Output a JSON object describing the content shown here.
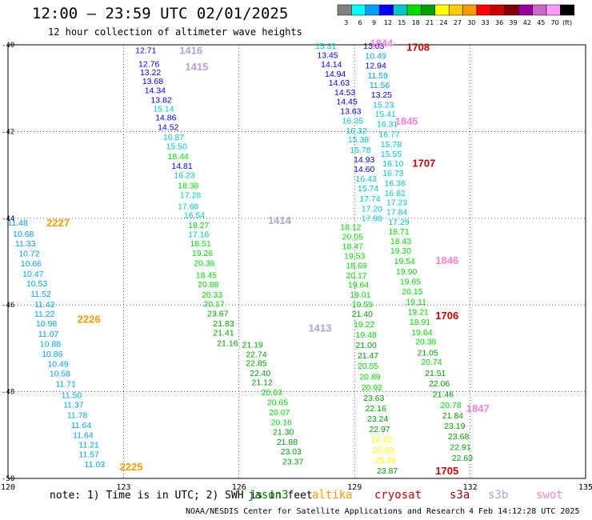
{
  "header": {
    "title": "12:00 — 23:59 UTC 02/01/2025",
    "subtitle": "12 hour collection of altimeter wave heights"
  },
  "colorbar": {
    "colors": [
      "#808080",
      "#00ffff",
      "#00a0ff",
      "#0000ff",
      "#00c8c8",
      "#00dd00",
      "#00a000",
      "#ffff00",
      "#ffcc00",
      "#ff9900",
      "#ff0000",
      "#cc0000",
      "#800000",
      "#990099",
      "#cc66cc",
      "#ff99ff",
      "#000000"
    ],
    "labels": [
      "3",
      "6",
      "9",
      "12",
      "15",
      "18",
      "21",
      "24",
      "27",
      "30",
      "33",
      "36",
      "39",
      "42",
      "45",
      "70",
      "(ft)"
    ]
  },
  "footer": {
    "note": "note: 1) Time is in UTC; 2) SWH is in feet",
    "credit": "NOAA/NESDIS Center for Satellite Applications and Research",
    "timestamp": "4 Feb 14:12:28 UTC 2025"
  },
  "legend": [
    {
      "name": "jason3",
      "color": "#008000"
    },
    {
      "name": "altika",
      "color": "#ff9900"
    },
    {
      "name": "cryosat",
      "color": "#cc0000"
    },
    {
      "name": "s3a",
      "color": "#990000"
    },
    {
      "name": "s3b",
      "color": "#b0a0e0"
    },
    {
      "name": "swot",
      "color": "#ff80d0"
    }
  ],
  "chart_data": {
    "type": "scatter",
    "title": "12:00 — 23:59 UTC 02/01/2025",
    "subtitle": "12 hour collection of altimeter wave heights",
    "xlabel": "",
    "ylabel": "",
    "xlim": [
      120,
      135
    ],
    "ylim": [
      -50,
      -40
    ],
    "x_ticks": [
      "120",
      "123",
      "126",
      "129",
      "132",
      "135"
    ],
    "y_ticks": [
      "-40",
      "-42",
      "-44",
      "-46",
      "-48",
      "-50"
    ],
    "grid": true,
    "color_scale": {
      "breaks": [
        3,
        6,
        9,
        12,
        15,
        18,
        21,
        24,
        27,
        30,
        33,
        36,
        39,
        42,
        45,
        70
      ],
      "colors": [
        "#808080",
        "#00ffff",
        "#00a0ff",
        "#0000ff",
        "#00c8c8",
        "#00dd00",
        "#00a000",
        "#ffff00",
        "#ffcc00",
        "#ff9900",
        "#ff0000",
        "#cc0000",
        "#800000",
        "#990099",
        "#cc66cc",
        "#ff99ff"
      ]
    },
    "annotations": [
      {
        "text": "1416",
        "x": 124.45,
        "y": -40.12,
        "color": "#b0a0e0"
      },
      {
        "text": "1415",
        "x": 124.6,
        "y": -40.5,
        "color": "#b0a0e0"
      },
      {
        "text": "1414",
        "x": 126.75,
        "y": -44.04,
        "color": "#b0a0e0"
      },
      {
        "text": "1413",
        "x": 127.8,
        "y": -46.52,
        "color": "#b0a0e0"
      },
      {
        "text": "2227",
        "x": 121.0,
        "y": -44.1,
        "color": "#ff9900"
      },
      {
        "text": "2226",
        "x": 121.8,
        "y": -46.32,
        "color": "#ff9900"
      },
      {
        "text": "2225",
        "x": 122.9,
        "y": -49.72,
        "color": "#ff9900"
      },
      {
        "text": "1844",
        "x": 129.4,
        "y": -39.95,
        "color": "#ff80d0"
      },
      {
        "text": "1708",
        "x": 130.35,
        "y": -40.05,
        "color": "#cc0000"
      },
      {
        "text": "1845",
        "x": 130.05,
        "y": -41.75,
        "color": "#ff80d0"
      },
      {
        "text": "1707",
        "x": 130.5,
        "y": -42.72,
        "color": "#cc0000"
      },
      {
        "text": "1846",
        "x": 131.1,
        "y": -44.96,
        "color": "#ff80d0"
      },
      {
        "text": "1706",
        "x": 131.1,
        "y": -46.24,
        "color": "#cc0000"
      },
      {
        "text": "1847",
        "x": 131.9,
        "y": -48.38,
        "color": "#ff80d0"
      },
      {
        "text": "1705",
        "x": 131.1,
        "y": -49.82,
        "color": "#cc0000"
      }
    ],
    "series": [
      {
        "name": "s3b",
        "points": [
          {
            "x": 123.58,
            "y": -40.12,
            "v": 12.71
          },
          {
            "x": 123.66,
            "y": -40.43,
            "v": 12.76
          },
          {
            "x": 123.7,
            "y": -40.63,
            "v": 13.22
          },
          {
            "x": 123.76,
            "y": -40.83,
            "v": 13.68
          },
          {
            "x": 123.82,
            "y": -41.04,
            "v": 14.34
          },
          {
            "x": 123.98,
            "y": -41.26,
            "v": 13.82
          },
          {
            "x": 124.04,
            "y": -41.47,
            "v": 15.14
          },
          {
            "x": 124.1,
            "y": -41.67,
            "v": 14.86
          },
          {
            "x": 124.16,
            "y": -41.89,
            "v": 14.52
          },
          {
            "x": 124.3,
            "y": -42.12,
            "v": 16.87
          },
          {
            "x": 124.38,
            "y": -42.33,
            "v": 15.5
          },
          {
            "x": 124.42,
            "y": -42.56,
            "v": 18.44
          },
          {
            "x": 124.52,
            "y": -42.79,
            "v": 14.81
          },
          {
            "x": 124.58,
            "y": -43.0,
            "v": 16.23
          },
          {
            "x": 124.68,
            "y": -43.24,
            "v": 18.38
          },
          {
            "x": 124.74,
            "y": -43.46,
            "v": 17.28
          },
          {
            "x": 124.68,
            "y": -43.72,
            "v": 17.68
          },
          {
            "x": 124.84,
            "y": -43.92,
            "v": 16.54
          },
          {
            "x": 124.95,
            "y": -44.15,
            "v": 18.27
          },
          {
            "x": 124.95,
            "y": -44.36,
            "v": 17.16
          },
          {
            "x": 125.0,
            "y": -44.58,
            "v": 18.51
          },
          {
            "x": 125.05,
            "y": -44.8,
            "v": 19.26
          },
          {
            "x": 125.1,
            "y": -45.03,
            "v": 20.36
          },
          {
            "x": 125.15,
            "y": -45.3,
            "v": 18.45
          },
          {
            "x": 125.2,
            "y": -45.52,
            "v": 20.88
          },
          {
            "x": 125.3,
            "y": -45.76,
            "v": 20.33
          },
          {
            "x": 125.35,
            "y": -45.97,
            "v": 20.17
          },
          {
            "x": 125.45,
            "y": -46.19,
            "v": 23.67
          },
          {
            "x": 125.6,
            "y": -46.42,
            "v": 21.83
          },
          {
            "x": 125.6,
            "y": -46.63,
            "v": 21.41
          },
          {
            "x": 125.7,
            "y": -46.87,
            "v": 21.16
          },
          {
            "x": 126.35,
            "y": -46.91,
            "v": 21.19
          },
          {
            "x": 126.45,
            "y": -47.13,
            "v": 22.74
          },
          {
            "x": 126.45,
            "y": -47.33,
            "v": 22.85
          },
          {
            "x": 126.55,
            "y": -47.56,
            "v": 22.4
          },
          {
            "x": 126.6,
            "y": -47.78,
            "v": 21.12
          },
          {
            "x": 126.85,
            "y": -48.01,
            "v": 20.63
          },
          {
            "x": 127.0,
            "y": -48.24,
            "v": 20.65
          },
          {
            "x": 127.05,
            "y": -48.47,
            "v": 20.07
          },
          {
            "x": 127.1,
            "y": -48.7,
            "v": 20.16
          },
          {
            "x": 127.15,
            "y": -48.92,
            "v": 21.3
          },
          {
            "x": 127.25,
            "y": -49.15,
            "v": 21.88
          },
          {
            "x": 127.35,
            "y": -49.37,
            "v": 23.03
          },
          {
            "x": 127.4,
            "y": -49.6,
            "v": 23.37
          }
        ]
      },
      {
        "name": "altika",
        "points": [
          {
            "x": 120.25,
            "y": -44.1,
            "v": 11.48
          },
          {
            "x": 120.4,
            "y": -44.35,
            "v": 10.68
          },
          {
            "x": 120.45,
            "y": -44.58,
            "v": 11.33
          },
          {
            "x": 120.55,
            "y": -44.81,
            "v": 10.72
          },
          {
            "x": 120.6,
            "y": -45.04,
            "v": 10.66
          },
          {
            "x": 120.65,
            "y": -45.28,
            "v": 10.47
          },
          {
            "x": 120.75,
            "y": -45.5,
            "v": 10.53
          },
          {
            "x": 120.85,
            "y": -45.74,
            "v": 11.52
          },
          {
            "x": 120.95,
            "y": -45.98,
            "v": 11.42
          },
          {
            "x": 120.95,
            "y": -46.2,
            "v": 11.22
          },
          {
            "x": 121.0,
            "y": -46.42,
            "v": 10.98
          },
          {
            "x": 121.05,
            "y": -46.66,
            "v": 11.07
          },
          {
            "x": 121.1,
            "y": -46.89,
            "v": 10.88
          },
          {
            "x": 121.15,
            "y": -47.12,
            "v": 10.86
          },
          {
            "x": 121.3,
            "y": -47.35,
            "v": 10.49
          },
          {
            "x": 121.35,
            "y": -47.57,
            "v": 10.58
          },
          {
            "x": 121.5,
            "y": -47.81,
            "v": 11.71
          },
          {
            "x": 121.65,
            "y": -48.07,
            "v": 11.5
          },
          {
            "x": 121.7,
            "y": -48.29,
            "v": 11.37
          },
          {
            "x": 121.8,
            "y": -48.53,
            "v": 11.78
          },
          {
            "x": 121.9,
            "y": -48.76,
            "v": 11.64
          },
          {
            "x": 121.95,
            "y": -48.99,
            "v": 11.64
          },
          {
            "x": 122.1,
            "y": -49.22,
            "v": 11.21
          },
          {
            "x": 122.1,
            "y": -49.44,
            "v": 11.57
          },
          {
            "x": 122.25,
            "y": -49.67,
            "v": 11.03
          }
        ]
      },
      {
        "name": "swot",
        "points": [
          {
            "x": 128.25,
            "y": -40.02,
            "v": 15.31
          },
          {
            "x": 128.3,
            "y": -40.23,
            "v": 13.45
          },
          {
            "x": 128.4,
            "y": -40.44,
            "v": 14.14
          },
          {
            "x": 128.5,
            "y": -40.66,
            "v": 14.94
          },
          {
            "x": 128.6,
            "y": -40.87,
            "v": 14.63
          },
          {
            "x": 128.75,
            "y": -41.09,
            "v": 14.53
          },
          {
            "x": 128.8,
            "y": -41.3,
            "v": 14.45
          },
          {
            "x": 128.9,
            "y": -41.52,
            "v": 13.63
          },
          {
            "x": 128.95,
            "y": -41.74,
            "v": 16.35
          },
          {
            "x": 129.05,
            "y": -41.97,
            "v": 16.32
          },
          {
            "x": 129.1,
            "y": -42.18,
            "v": 15.38
          },
          {
            "x": 129.15,
            "y": -42.42,
            "v": 15.78
          },
          {
            "x": 129.25,
            "y": -42.64,
            "v": 14.93
          },
          {
            "x": 129.25,
            "y": -42.86,
            "v": 14.6
          },
          {
            "x": 129.3,
            "y": -43.08,
            "v": 16.43
          },
          {
            "x": 129.35,
            "y": -43.3,
            "v": 15.74
          },
          {
            "x": 129.4,
            "y": -43.54,
            "v": 17.74
          },
          {
            "x": 129.45,
            "y": -43.77,
            "v": 17.2
          },
          {
            "x": 129.45,
            "y": -43.99,
            "v": 17.98
          }
        ]
      },
      {
        "name": "cryosat",
        "points": [
          {
            "x": 129.5,
            "y": -40.02,
            "v": 13.03
          },
          {
            "x": 129.55,
            "y": -40.25,
            "v": 10.49
          },
          {
            "x": 129.55,
            "y": -40.47,
            "v": 12.94
          },
          {
            "x": 129.6,
            "y": -40.7,
            "v": 11.59
          },
          {
            "x": 129.65,
            "y": -40.92,
            "v": 11.56
          },
          {
            "x": 129.7,
            "y": -41.14,
            "v": 13.25
          },
          {
            "x": 129.75,
            "y": -41.37,
            "v": 15.23
          },
          {
            "x": 129.8,
            "y": -41.59,
            "v": 15.41
          },
          {
            "x": 129.85,
            "y": -41.82,
            "v": 16.31
          },
          {
            "x": 129.9,
            "y": -42.06,
            "v": 16.77
          },
          {
            "x": 129.95,
            "y": -42.29,
            "v": 15.78
          },
          {
            "x": 129.95,
            "y": -42.51,
            "v": 15.55
          },
          {
            "x": 130.0,
            "y": -42.73,
            "v": 16.1
          },
          {
            "x": 130.0,
            "y": -42.95,
            "v": 16.73
          },
          {
            "x": 130.05,
            "y": -43.18,
            "v": 16.36
          },
          {
            "x": 130.05,
            "y": -43.41,
            "v": 16.82
          },
          {
            "x": 130.1,
            "y": -43.63,
            "v": 17.23
          },
          {
            "x": 130.1,
            "y": -43.85,
            "v": 17.84
          },
          {
            "x": 130.15,
            "y": -44.08,
            "v": 17.29
          },
          {
            "x": 130.15,
            "y": -44.3,
            "v": 18.71
          },
          {
            "x": 130.2,
            "y": -44.52,
            "v": 18.43
          },
          {
            "x": 130.2,
            "y": -44.74,
            "v": 19.3
          },
          {
            "x": 130.3,
            "y": -44.98,
            "v": 19.54
          },
          {
            "x": 130.35,
            "y": -45.22,
            "v": 19.9
          },
          {
            "x": 130.45,
            "y": -45.45,
            "v": 19.65
          },
          {
            "x": 130.5,
            "y": -45.68,
            "v": 20.15
          },
          {
            "x": 130.6,
            "y": -45.92,
            "v": 19.11
          },
          {
            "x": 130.65,
            "y": -46.15,
            "v": 19.21
          },
          {
            "x": 130.7,
            "y": -46.38,
            "v": 18.91
          },
          {
            "x": 130.75,
            "y": -46.62,
            "v": 19.64
          },
          {
            "x": 130.85,
            "y": -46.84,
            "v": 20.38
          },
          {
            "x": 130.9,
            "y": -47.09,
            "v": 21.05
          },
          {
            "x": 131.0,
            "y": -47.31,
            "v": 20.74
          },
          {
            "x": 131.1,
            "y": -47.56,
            "v": 21.51
          },
          {
            "x": 131.2,
            "y": -47.8,
            "v": 22.06
          },
          {
            "x": 131.3,
            "y": -48.05,
            "v": 21.46
          },
          {
            "x": 131.5,
            "y": -48.3,
            "v": 20.78
          },
          {
            "x": 131.55,
            "y": -48.54,
            "v": 21.84
          },
          {
            "x": 131.6,
            "y": -48.78,
            "v": 23.19
          },
          {
            "x": 131.7,
            "y": -49.02,
            "v": 23.68
          },
          {
            "x": 131.75,
            "y": -49.27,
            "v": 22.91
          },
          {
            "x": 131.8,
            "y": -49.52,
            "v": 22.63
          }
        ]
      },
      {
        "name": "jason3",
        "points": [
          {
            "x": 128.9,
            "y": -44.2,
            "v": 18.12
          },
          {
            "x": 128.95,
            "y": -44.42,
            "v": 20.05
          },
          {
            "x": 128.95,
            "y": -44.64,
            "v": 18.47
          },
          {
            "x": 129.0,
            "y": -44.86,
            "v": 19.53
          },
          {
            "x": 129.05,
            "y": -45.08,
            "v": 18.69
          },
          {
            "x": 129.05,
            "y": -45.31,
            "v": 20.17
          },
          {
            "x": 129.1,
            "y": -45.53,
            "v": 19.64
          },
          {
            "x": 129.15,
            "y": -45.76,
            "v": 19.01
          },
          {
            "x": 129.2,
            "y": -45.98,
            "v": 19.59
          },
          {
            "x": 129.2,
            "y": -46.2,
            "v": 21.4
          },
          {
            "x": 129.25,
            "y": -46.44,
            "v": 19.22
          },
          {
            "x": 129.3,
            "y": -46.68,
            "v": 19.48
          },
          {
            "x": 129.3,
            "y": -46.92,
            "v": 21.0
          },
          {
            "x": 129.35,
            "y": -47.16,
            "v": 21.47
          },
          {
            "x": 129.35,
            "y": -47.4,
            "v": 20.55
          },
          {
            "x": 129.4,
            "y": -47.65,
            "v": 20.89
          },
          {
            "x": 129.45,
            "y": -47.9,
            "v": 20.92
          },
          {
            "x": 129.5,
            "y": -48.14,
            "v": 23.63
          },
          {
            "x": 129.55,
            "y": -48.38,
            "v": 22.16
          },
          {
            "x": 129.6,
            "y": -48.62,
            "v": 23.24
          },
          {
            "x": 129.65,
            "y": -48.86,
            "v": 22.97
          },
          {
            "x": 129.7,
            "y": -49.1,
            "v": 24.42
          },
          {
            "x": 129.75,
            "y": -49.34,
            "v": 25.69
          },
          {
            "x": 129.8,
            "y": -49.58,
            "v": 25.36
          },
          {
            "x": 129.85,
            "y": -49.82,
            "v": 23.87
          }
        ]
      }
    ]
  }
}
